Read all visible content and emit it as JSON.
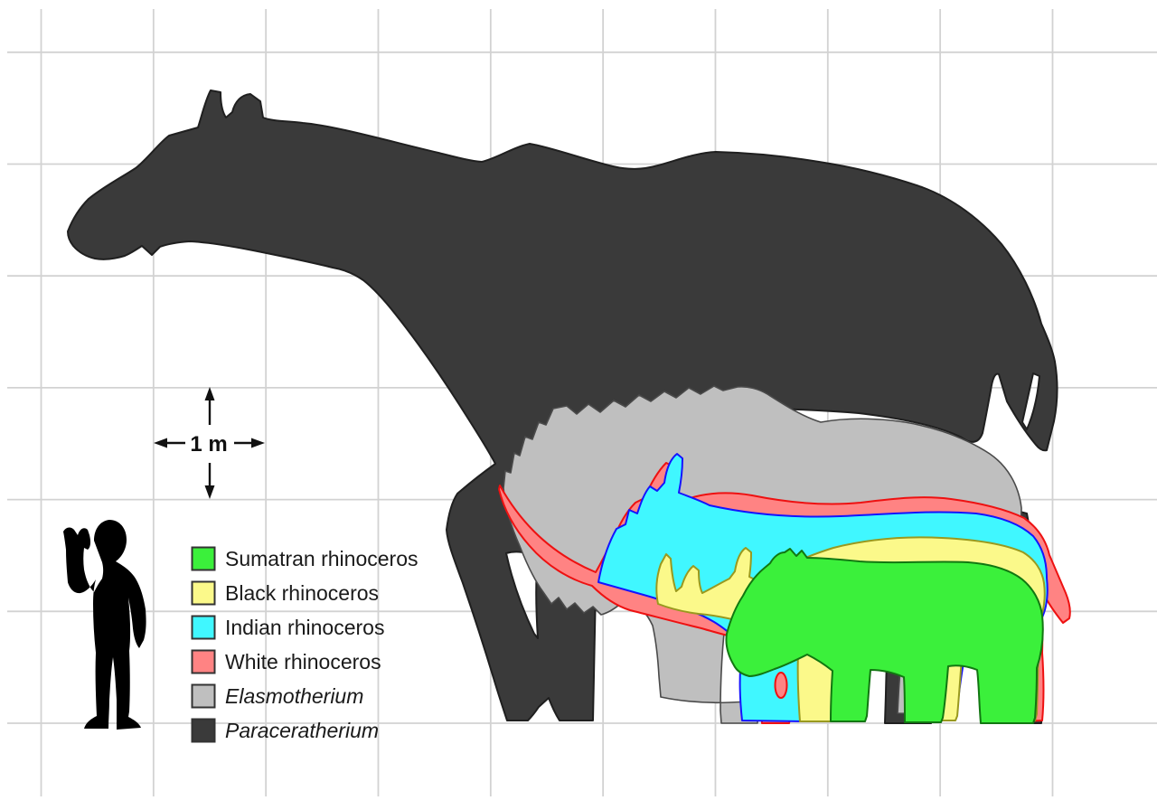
{
  "scene": {
    "background": "#ffffff",
    "grid_color": "#d2d2d2",
    "grid_cell_represents": "1 m"
  },
  "scale_marker": {
    "label": "1 m",
    "arrow_color": "#111111"
  },
  "species": [
    {
      "id": "paraceratherium",
      "label": "Paraceratherium",
      "fill": "#3A3A3A",
      "stroke": "#1F1F1F",
      "italic": true
    },
    {
      "id": "elasmotherium",
      "label": "Elasmotherium",
      "fill": "#BFBFBF",
      "stroke": "#4A4A4A",
      "italic": true
    },
    {
      "id": "white-rhinoceros",
      "label": "White rhinoceros",
      "fill": "#FF8383",
      "stroke": "#EE1111",
      "italic": false
    },
    {
      "id": "indian-rhinoceros",
      "label": "Indian rhinoceros",
      "fill": "#40F7FF",
      "stroke": "#1414FF",
      "italic": false
    },
    {
      "id": "black-rhinoceros",
      "label": "Black rhinoceros",
      "fill": "#FBF98A",
      "stroke": "#99991F",
      "italic": false
    },
    {
      "id": "sumatran-rhinoceros",
      "label": "Sumatran rhinoceros",
      "fill": "#3BF03B",
      "stroke": "#117711",
      "italic": false
    },
    {
      "id": "human",
      "label": "Human",
      "fill": "#000000",
      "stroke": "#000000",
      "italic": false
    }
  ],
  "legend": {
    "order": [
      "sumatran-rhinoceros",
      "black-rhinoceros",
      "indian-rhinoceros",
      "white-rhinoceros",
      "elasmotherium",
      "paraceratherium"
    ],
    "swatch_border": "#333333",
    "text_color": "#1a1a1a"
  }
}
